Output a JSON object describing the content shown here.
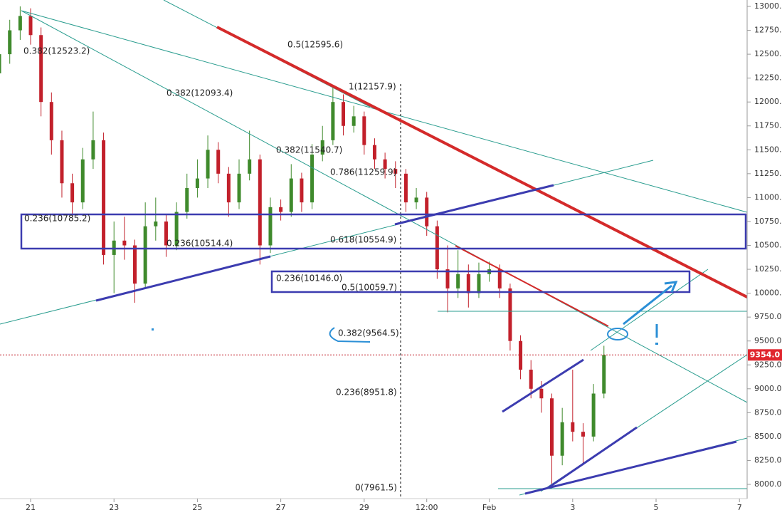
{
  "chart_data": {
    "type": "candlestick",
    "x": [
      -0.75,
      -0.5,
      -0.25,
      0,
      0.25,
      0.5,
      0.75,
      1,
      1.25,
      1.5,
      1.75,
      2,
      2.25,
      2.5,
      2.75,
      3,
      3.25,
      3.5,
      3.75,
      4,
      4.25,
      4.5,
      4.75,
      5,
      5.25,
      5.5,
      5.75,
      6,
      6.25,
      6.5,
      6.75,
      7,
      7.25,
      7.5,
      7.75,
      8,
      8.25,
      8.5,
      8.75,
      9,
      9.25,
      9.5,
      9.75,
      10,
      10.25,
      10.5,
      10.75,
      11,
      11.25,
      11.5,
      11.75,
      12,
      12.25,
      12.5,
      12.75,
      13,
      13.25,
      13.5,
      13.75
    ],
    "open": [
      12300,
      12500,
      12750,
      12900,
      12700,
      12000,
      11600,
      11150,
      10950,
      11400,
      11600,
      10400,
      10550,
      10500,
      10100,
      10700,
      10750,
      10500,
      10850,
      11100,
      11200,
      11500,
      11250,
      10950,
      11250,
      11400,
      10500,
      10900,
      10850,
      11200,
      10950,
      11450,
      11600,
      12000,
      11750,
      11850,
      11550,
      11400,
      11300,
      11250,
      10950,
      11000,
      10700,
      10250,
      10050,
      10200,
      10000,
      10200,
      10250,
      10050,
      9500,
      9200,
      9000,
      8900,
      8300,
      8650,
      8550,
      8500,
      8950
    ],
    "high": [
      12620,
      12860,
      13000,
      12980,
      12780,
      12100,
      11700,
      11250,
      11520,
      11900,
      11680,
      10750,
      10800,
      10560,
      10950,
      11000,
      10830,
      10950,
      11250,
      11400,
      11650,
      11580,
      11320,
      11400,
      11700,
      11450,
      11000,
      10980,
      11350,
      11260,
      11560,
      11750,
      12160,
      12080,
      11960,
      11900,
      11620,
      11470,
      11380,
      11300,
      11100,
      11060,
      10760,
      10500,
      10450,
      10300,
      10320,
      10330,
      10300,
      10100,
      9560,
      9300,
      9080,
      8950,
      8800,
      9200,
      8640,
      9050,
      9450
    ],
    "low": [
      12200,
      12400,
      12650,
      12600,
      11850,
      11450,
      11000,
      10800,
      10880,
      11300,
      10300,
      10000,
      10350,
      9900,
      10050,
      10550,
      10380,
      10450,
      10780,
      11000,
      11100,
      11150,
      10800,
      10880,
      11180,
      10300,
      10420,
      10760,
      10800,
      10850,
      10880,
      11380,
      11550,
      11650,
      11680,
      11450,
      11300,
      11200,
      11100,
      10850,
      10880,
      10600,
      10150,
      9800,
      9950,
      9850,
      9950,
      10120,
      9950,
      9400,
      9100,
      8900,
      8750,
      7962,
      8200,
      8450,
      8200,
      8450,
      8900
    ],
    "close": [
      12500,
      12750,
      12900,
      12700,
      12000,
      11600,
      11150,
      10950,
      11400,
      11600,
      10400,
      10550,
      10500,
      10100,
      10700,
      10750,
      10500,
      10850,
      11100,
      11200,
      11500,
      11250,
      10950,
      11250,
      11400,
      10500,
      10900,
      10850,
      11200,
      10950,
      11450,
      11600,
      12000,
      11750,
      11850,
      11550,
      11400,
      11300,
      11250,
      10950,
      11000,
      10700,
      10250,
      10050,
      10200,
      10000,
      10200,
      10250,
      10050,
      9500,
      9200,
      9000,
      8900,
      8300,
      8650,
      8550,
      8500,
      8950,
      9354
    ],
    "up_color": "#3f8a2c",
    "down_color": "#c2202b",
    "xlim": [
      -0.734,
      17.184
    ],
    "ylim": [
      7851,
      13067
    ],
    "xticks": [
      {
        "value": 0,
        "label": "21"
      },
      {
        "value": 2,
        "label": "23"
      },
      {
        "value": 4,
        "label": "25"
      },
      {
        "value": 6,
        "label": "27"
      },
      {
        "value": 8,
        "label": "29"
      },
      {
        "value": 9.5,
        "label": "12:00"
      },
      {
        "value": 11,
        "label": "Feb"
      },
      {
        "value": 13,
        "label": "3"
      },
      {
        "value": 15,
        "label": "5"
      },
      {
        "value": 17,
        "label": "7"
      }
    ],
    "yticks": [
      {
        "value": 8000,
        "label": "8000.0"
      },
      {
        "value": 8250,
        "label": "8250.0"
      },
      {
        "value": 8500,
        "label": "8500.0"
      },
      {
        "value": 8750,
        "label": "8750.0"
      },
      {
        "value": 9000,
        "label": "9000.0"
      },
      {
        "value": 9250,
        "label": "9250.0"
      },
      {
        "value": 9500,
        "label": "9500.0"
      },
      {
        "value": 9750,
        "label": "9750.0"
      },
      {
        "value": 10000,
        "label": "10000.0"
      },
      {
        "value": 10250,
        "label": "10250.0"
      },
      {
        "value": 10500,
        "label": "10500.0"
      },
      {
        "value": 10750,
        "label": "10750.0"
      },
      {
        "value": 11000,
        "label": "11000.0"
      },
      {
        "value": 11250,
        "label": "11250.0"
      },
      {
        "value": 11500,
        "label": "11500.0"
      },
      {
        "value": 11750,
        "label": "11750.0"
      },
      {
        "value": 12000,
        "label": "12000.0"
      },
      {
        "value": 12250,
        "label": "12250.0"
      },
      {
        "value": 12500,
        "label": "12500.0"
      },
      {
        "value": 12750,
        "label": "12750.0"
      },
      {
        "value": 13000,
        "label": "13000.0"
      }
    ],
    "last_price": {
      "value": 9354,
      "label": "9354.0"
    },
    "annotations": [
      "0.382(12523.2)",
      "0.5(12595.6)",
      "0.382(12093.4)",
      "1(12157.9)",
      "0.382(11540.7)",
      "0.786(11259.9)",
      "0.236(10785.2)",
      "0.236(10514.4)",
      "0.618(10554.9)",
      "0.236(10146.0)",
      "0.5(10059.7)",
      "0.382(9564.5)",
      "0.236(8951.8)",
      "0(7961.5)"
    ]
  }
}
